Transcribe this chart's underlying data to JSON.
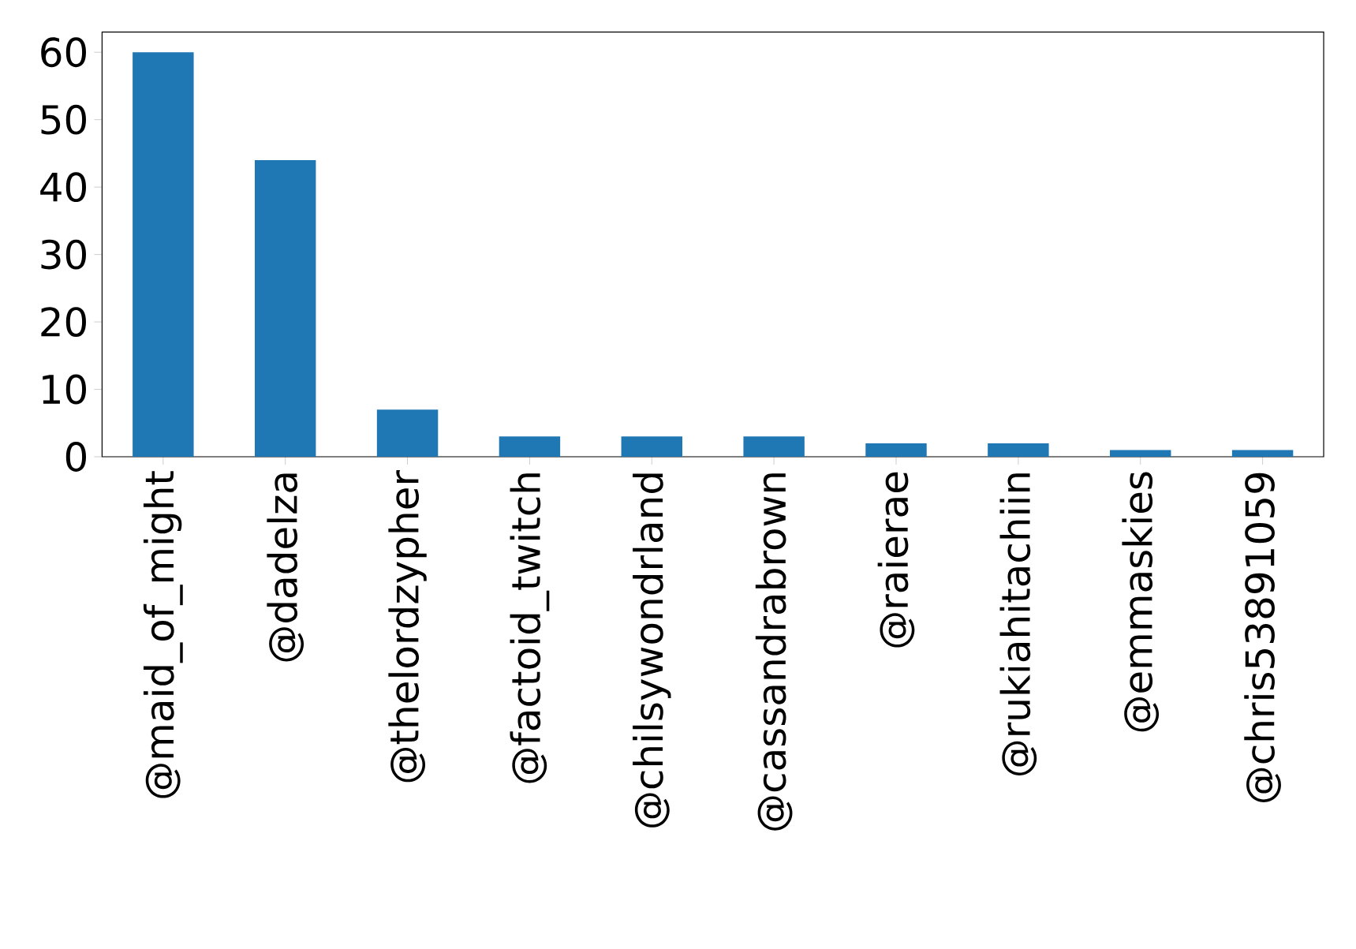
{
  "chart_data": {
    "type": "bar",
    "categories": [
      "@maid_of_might",
      "@dadelza",
      "@thelordzypher",
      "@factoid_twitch",
      "@chilsywondrland",
      "@cassandrabrown",
      "@raierae",
      "@rukiahitachiin",
      "@emmaskies",
      "@chris53891059"
    ],
    "values": [
      60,
      44,
      7,
      3,
      3,
      3,
      2,
      2,
      1,
      1
    ],
    "color": "#1f77b4",
    "ylim": [
      0,
      63
    ],
    "yticks": [
      0,
      10,
      20,
      30,
      40,
      50,
      60
    ]
  }
}
